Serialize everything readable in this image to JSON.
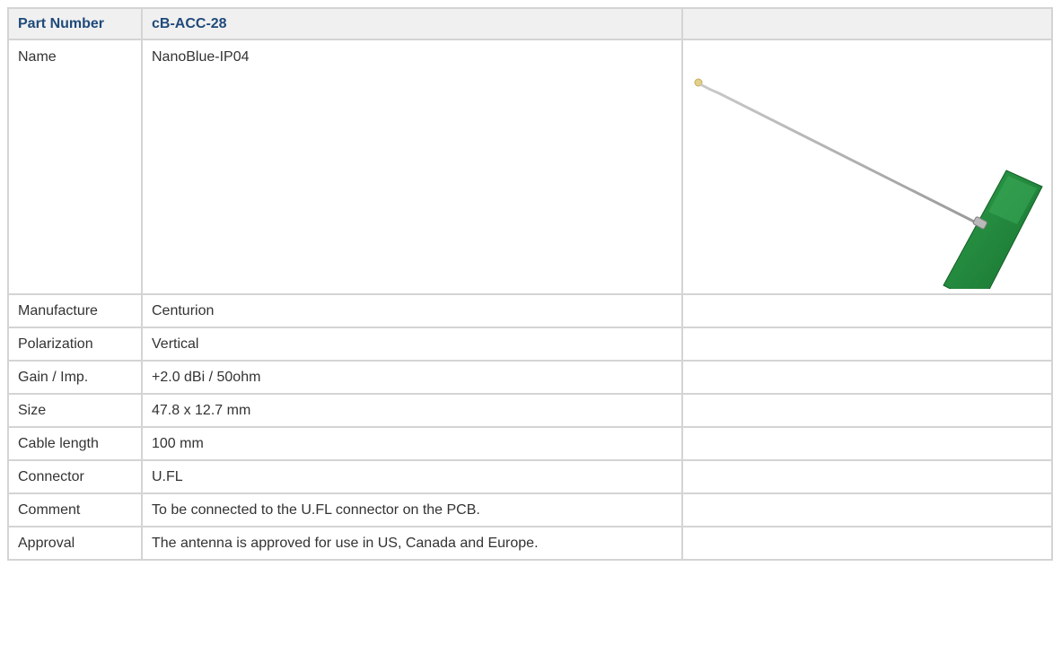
{
  "header": {
    "label": "Part Number",
    "value": "cB-ACC-28",
    "extra": ""
  },
  "name_row": {
    "label": "Name",
    "value": "NanoBlue-IP04",
    "image": "antenna-product-photo"
  },
  "rows": [
    {
      "label": "Manufacture",
      "value": "Centurion"
    },
    {
      "label": "Polarization",
      "value": "Vertical"
    },
    {
      "label": "Gain / Imp.",
      "value": "+2.0 dBi / 50ohm"
    },
    {
      "label": "Size",
      "value": "47.8 x 12.7 mm"
    },
    {
      "label": "Cable length",
      "value": "100 mm"
    },
    {
      "label": "Connector",
      "value": "U.FL"
    },
    {
      "label": "Comment",
      "value": "To be connected to the U.FL connector on the PCB."
    },
    {
      "label": "Approval",
      "value": "The antenna is approved for use in US, Canada and Europe."
    }
  ],
  "colors": {
    "header_text": "#1f4a7a",
    "header_bg": "#f0f0f0",
    "border": "#d4d4d4",
    "pcb_green": "#1f8a3a"
  }
}
